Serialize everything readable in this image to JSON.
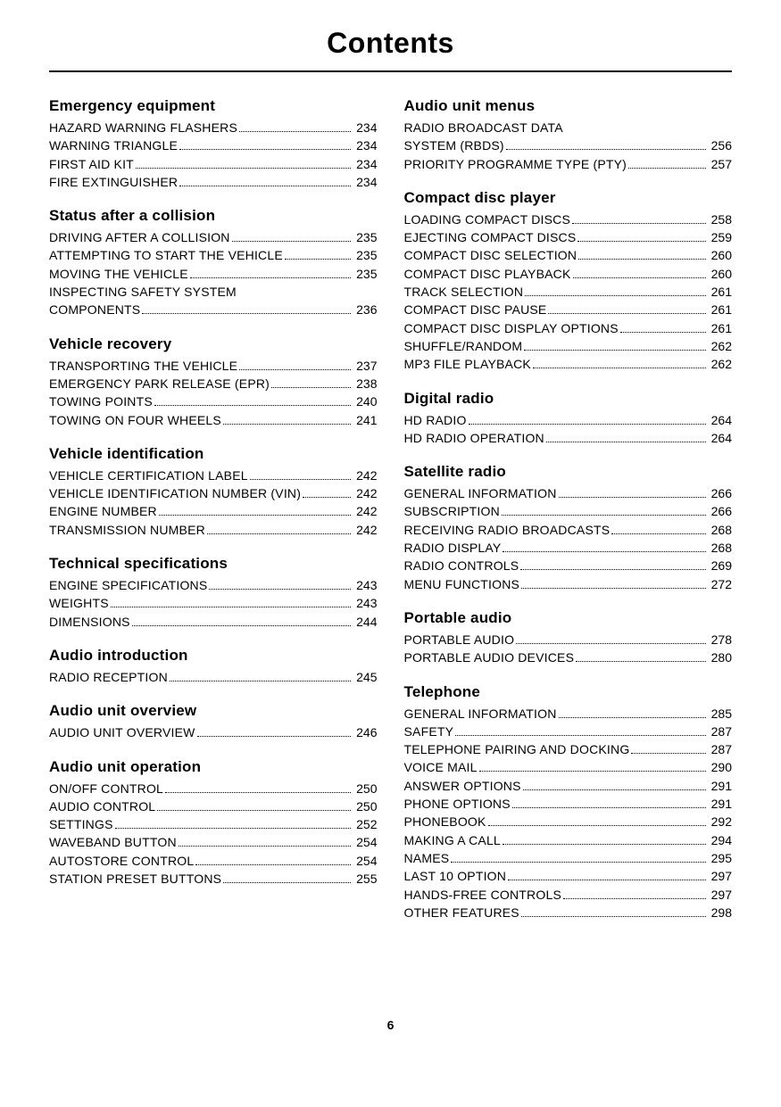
{
  "title": "Contents",
  "page_number": "6",
  "colors": {
    "text": "#000000",
    "background": "#ffffff",
    "rule": "#000000"
  },
  "typography": {
    "title_fontsize": 32,
    "heading_fontsize": 17,
    "body_fontsize": 14
  },
  "left": [
    {
      "heading": "Emergency equipment",
      "items": [
        {
          "label": "HAZARD WARNING FLASHERS",
          "page": "234"
        },
        {
          "label": "WARNING TRIANGLE",
          "page": "234"
        },
        {
          "label": "FIRST AID KIT",
          "page": "234"
        },
        {
          "label": "FIRE EXTINGUISHER",
          "page": "234"
        }
      ]
    },
    {
      "heading": "Status after a collision",
      "items": [
        {
          "label": "DRIVING AFTER A COLLISION",
          "page": "235"
        },
        {
          "label": "ATTEMPTING TO START THE VEHICLE",
          "page": "235"
        },
        {
          "label": "MOVING THE VEHICLE",
          "page": "235"
        },
        {
          "label_lines": [
            "INSPECTING SAFETY SYSTEM",
            "COMPONENTS"
          ],
          "page": "236"
        }
      ]
    },
    {
      "heading": "Vehicle recovery",
      "items": [
        {
          "label": "TRANSPORTING THE VEHICLE",
          "page": "237"
        },
        {
          "label": "EMERGENCY PARK RELEASE (EPR)",
          "page": "238"
        },
        {
          "label": "TOWING POINTS",
          "page": "240"
        },
        {
          "label": "TOWING ON FOUR WHEELS",
          "page": "241"
        }
      ]
    },
    {
      "heading": "Vehicle identification",
      "items": [
        {
          "label": "VEHICLE CERTIFICATION LABEL",
          "page": "242"
        },
        {
          "label": "VEHICLE IDENTIFICATION NUMBER (VIN)",
          "page": "242"
        },
        {
          "label": "ENGINE NUMBER",
          "page": "242"
        },
        {
          "label": "TRANSMISSION NUMBER",
          "page": "242"
        }
      ]
    },
    {
      "heading": "Technical specifications",
      "items": [
        {
          "label": "ENGINE SPECIFICATIONS",
          "page": "243"
        },
        {
          "label": "WEIGHTS",
          "page": "243"
        },
        {
          "label": "DIMENSIONS",
          "page": "244"
        }
      ]
    },
    {
      "heading": "Audio introduction",
      "items": [
        {
          "label": "RADIO RECEPTION",
          "page": "245"
        }
      ]
    },
    {
      "heading": "Audio unit overview",
      "items": [
        {
          "label": "AUDIO UNIT OVERVIEW",
          "page": "246"
        }
      ]
    },
    {
      "heading": "Audio unit operation",
      "items": [
        {
          "label": "ON/OFF CONTROL",
          "page": "250"
        },
        {
          "label": "AUDIO CONTROL",
          "page": "250"
        },
        {
          "label": "SETTINGS",
          "page": "252"
        },
        {
          "label": "WAVEBAND BUTTON",
          "page": "254"
        },
        {
          "label": "AUTOSTORE CONTROL",
          "page": "254"
        },
        {
          "label": "STATION PRESET BUTTONS",
          "page": "255"
        }
      ]
    }
  ],
  "right": [
    {
      "heading": "Audio unit menus",
      "items": [
        {
          "label_lines": [
            "RADIO BROADCAST DATA",
            "SYSTEM (RBDS)"
          ],
          "page": "256"
        },
        {
          "label": "PRIORITY PROGRAMME TYPE (PTY)",
          "page": "257"
        }
      ]
    },
    {
      "heading": "Compact disc player",
      "items": [
        {
          "label": "LOADING COMPACT DISCS",
          "page": "258"
        },
        {
          "label": "EJECTING COMPACT DISCS",
          "page": "259"
        },
        {
          "label": "COMPACT DISC SELECTION",
          "page": "260"
        },
        {
          "label": "COMPACT DISC PLAYBACK",
          "page": "260"
        },
        {
          "label": "TRACK SELECTION",
          "page": "261"
        },
        {
          "label": "COMPACT DISC PAUSE",
          "page": "261"
        },
        {
          "label": "COMPACT DISC DISPLAY OPTIONS",
          "page": "261"
        },
        {
          "label": "SHUFFLE/RANDOM",
          "page": "262"
        },
        {
          "label": "MP3 FILE PLAYBACK",
          "page": "262"
        }
      ]
    },
    {
      "heading": "Digital radio",
      "items": [
        {
          "label": "HD RADIO",
          "page": "264"
        },
        {
          "label": "HD RADIO OPERATION",
          "page": "264"
        }
      ]
    },
    {
      "heading": "Satellite radio",
      "items": [
        {
          "label": "GENERAL INFORMATION",
          "page": "266"
        },
        {
          "label": "SUBSCRIPTION",
          "page": "266"
        },
        {
          "label": "RECEIVING RADIO BROADCASTS",
          "page": "268"
        },
        {
          "label": "RADIO DISPLAY",
          "page": "268"
        },
        {
          "label": "RADIO CONTROLS",
          "page": "269"
        },
        {
          "label": "MENU FUNCTIONS",
          "page": "272"
        }
      ]
    },
    {
      "heading": "Portable audio",
      "items": [
        {
          "label": "PORTABLE AUDIO",
          "page": "278"
        },
        {
          "label": "PORTABLE AUDIO DEVICES",
          "page": "280"
        }
      ]
    },
    {
      "heading": "Telephone",
      "items": [
        {
          "label": "GENERAL INFORMATION",
          "page": "285"
        },
        {
          "label": "SAFETY",
          "page": "287"
        },
        {
          "label": "TELEPHONE PAIRING AND DOCKING",
          "page": "287"
        },
        {
          "label": "VOICE MAIL",
          "page": "290"
        },
        {
          "label": "ANSWER OPTIONS",
          "page": "291"
        },
        {
          "label": "PHONE OPTIONS",
          "page": "291"
        },
        {
          "label": "PHONEBOOK",
          "page": "292"
        },
        {
          "label": "MAKING A CALL",
          "page": "294"
        },
        {
          "label": "NAMES",
          "page": "295"
        },
        {
          "label": "LAST 10 OPTION",
          "page": "297"
        },
        {
          "label": "HANDS-FREE CONTROLS",
          "page": "297"
        },
        {
          "label": "OTHER FEATURES",
          "page": "298"
        }
      ]
    }
  ]
}
